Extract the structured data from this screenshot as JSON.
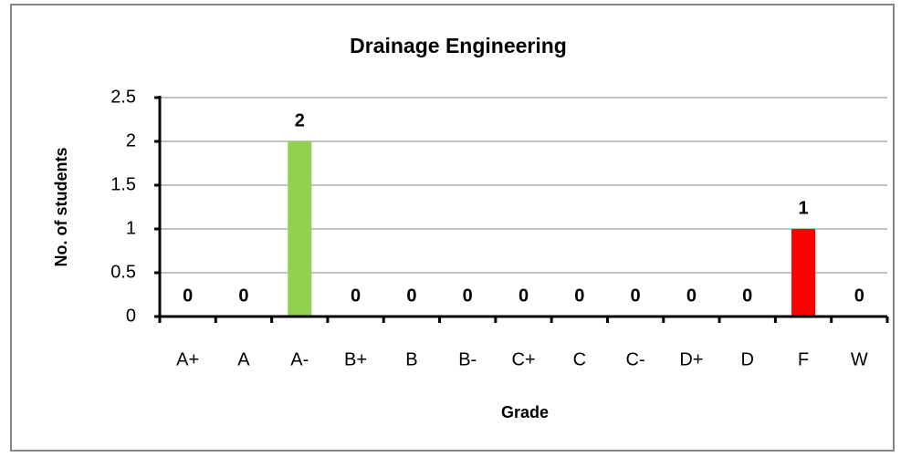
{
  "chart_data": {
    "type": "bar",
    "title": "Drainage Engineering",
    "x_label": "Grade",
    "y_label": "No. of students",
    "categories": [
      "A+",
      "A",
      "A-",
      "B+",
      "B",
      "B-",
      "C+",
      "C",
      "C-",
      "D+",
      "D",
      "F",
      "W"
    ],
    "values": [
      0,
      0,
      2,
      0,
      0,
      0,
      0,
      0,
      0,
      0,
      0,
      1,
      0
    ],
    "colors": [
      "#92d050",
      "#92d050",
      "#92d050",
      "#92d050",
      "#92d050",
      "#92d050",
      "#92d050",
      "#92d050",
      "#92d050",
      "#92d050",
      "#92d050",
      "#ff0000",
      "#92d050"
    ],
    "ylim": [
      0,
      2.5
    ],
    "yticks": [
      0,
      0.5,
      1,
      1.5,
      2,
      2.5
    ],
    "grid": true
  }
}
